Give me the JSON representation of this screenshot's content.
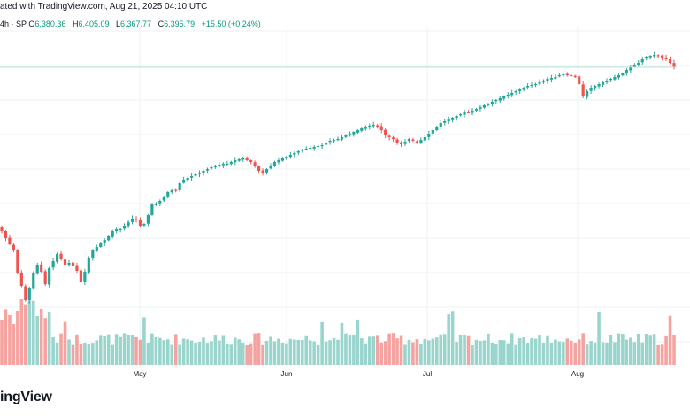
{
  "header": {
    "caption": "ated with TradingView.com, Aug 21, 2025 04:10 UTC",
    "symbol": "4h · SP"
  },
  "ohlc": {
    "open_label": "O",
    "open": "6,380.36",
    "high_label": "H",
    "high": "6,405.09",
    "low_label": "L",
    "low": "6,367.77",
    "close_label": "C",
    "close": "6,395.79",
    "change": "+15.50 (+0.24%)"
  },
  "brand": {
    "text": "ingView"
  },
  "colors": {
    "up": "#26a69a",
    "down": "#ef5350",
    "vol_up": "#9ad5cd",
    "vol_down": "#f5a3a1",
    "grid": "#eef0f3",
    "last_price_line": "#b2dfdb"
  },
  "chart_data": {
    "type": "candlestick",
    "x_labels": [
      "May",
      "Jun",
      "Jul",
      "Aug"
    ],
    "grid": true,
    "last_price": 6395.79,
    "closes": [
      5470,
      5430,
      5395,
      5360,
      5235,
      5160,
      5080,
      5150,
      5230,
      5280,
      5240,
      5170,
      5260,
      5300,
      5340,
      5310,
      5280,
      5290,
      5275,
      5245,
      5180,
      5240,
      5320,
      5360,
      5380,
      5400,
      5420,
      5440,
      5470,
      5480,
      5480,
      5500,
      5520,
      5540,
      5530,
      5500,
      5510,
      5560,
      5620,
      5625,
      5640,
      5660,
      5690,
      5700,
      5700,
      5740,
      5760,
      5770,
      5780,
      5790,
      5800,
      5810,
      5820,
      5830,
      5840,
      5845,
      5850,
      5850,
      5860,
      5870,
      5875,
      5880,
      5870,
      5860,
      5840,
      5810,
      5800,
      5820,
      5840,
      5860,
      5870,
      5880,
      5890,
      5900,
      5910,
      5920,
      5930,
      5935,
      5940,
      5945,
      5950,
      5955,
      5970,
      5980,
      5985,
      5990,
      6000,
      6010,
      6020,
      6030,
      6040,
      6050,
      6060,
      6065,
      6070,
      6060,
      6040,
      6010,
      6000,
      5990,
      5970,
      5960,
      5975,
      5990,
      5980,
      5970,
      5985,
      6000,
      6020,
      6040,
      6060,
      6080,
      6090,
      6100,
      6110,
      6120,
      6130,
      6140,
      6140,
      6150,
      6160,
      6170,
      6180,
      6190,
      6200,
      6210,
      6220,
      6230,
      6240,
      6250,
      6260,
      6270,
      6280,
      6290,
      6295,
      6300,
      6310,
      6320,
      6330,
      6335,
      6340,
      6350,
      6355,
      6350,
      6345,
      6340,
      6300,
      6230,
      6260,
      6280,
      6290,
      6300,
      6310,
      6320,
      6330,
      6340,
      6350,
      6360,
      6380,
      6395,
      6410,
      6420,
      6440,
      6455,
      6460,
      6465,
      6460,
      6450,
      6440,
      6420,
      6395
    ]
  }
}
